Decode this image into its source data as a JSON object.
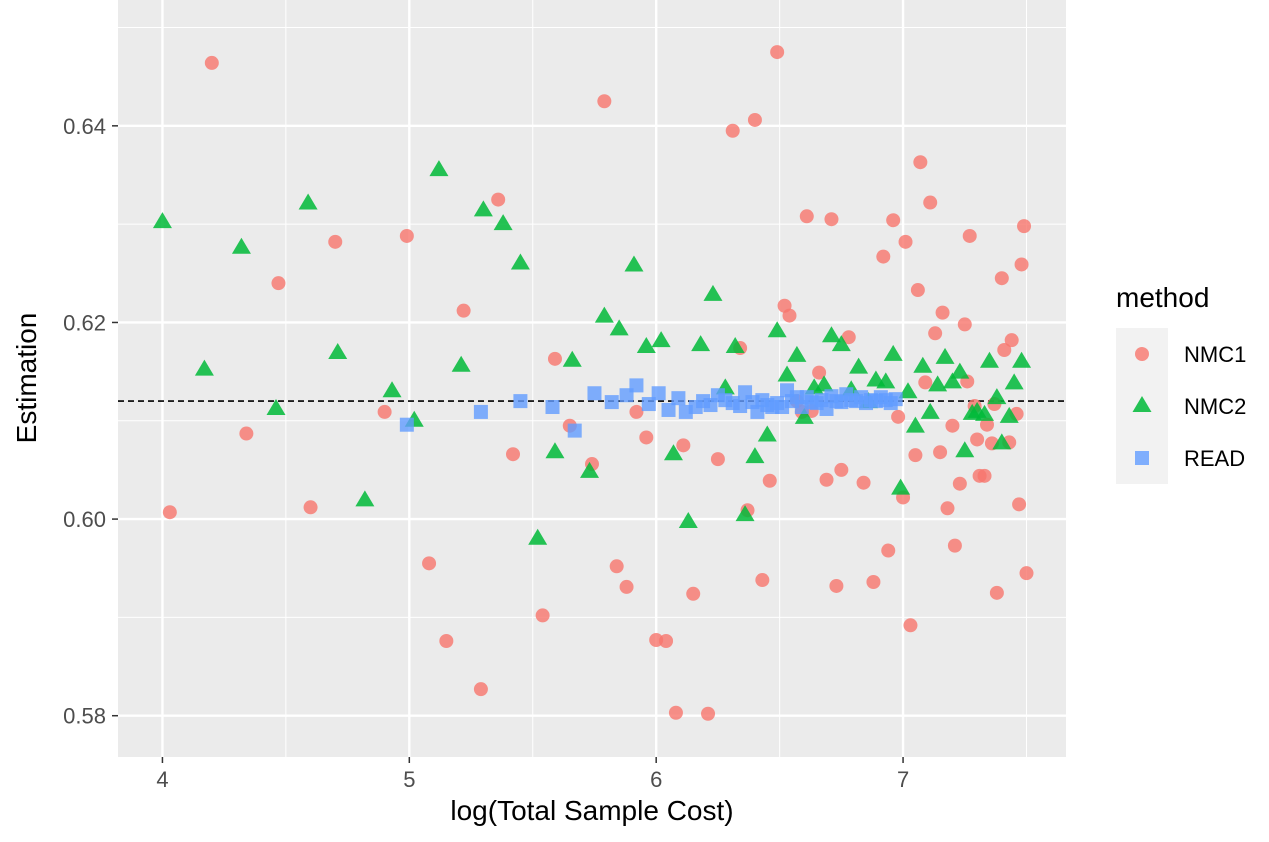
{
  "chart_data": {
    "type": "scatter",
    "xlabel": "log(Total Sample Cost)",
    "ylabel": "Estimation",
    "xlim": [
      3.82,
      7.66
    ],
    "ylim": [
      0.5758,
      0.6528
    ],
    "x_ticks": [
      4,
      5,
      6,
      7
    ],
    "x_tick_labels": [
      "4",
      "5",
      "6",
      "7"
    ],
    "y_ticks": [
      0.58,
      0.6,
      0.62,
      0.64
    ],
    "y_tick_labels": [
      "0.58",
      "0.60",
      "0.62",
      "0.64"
    ],
    "grid": true,
    "reference_line": {
      "y": 0.612,
      "style": "dashed",
      "color": "#000000"
    },
    "legend": {
      "title": "method",
      "placement": "right"
    },
    "series": [
      {
        "name": "NMC1",
        "shape": "circle",
        "color": "#F8766D",
        "points": [
          [
            4.03,
            0.6007
          ],
          [
            4.2,
            0.6464
          ],
          [
            4.34,
            0.6087
          ],
          [
            4.47,
            0.624
          ],
          [
            4.6,
            0.6012
          ],
          [
            4.7,
            0.6282
          ],
          [
            4.9,
            0.6109
          ],
          [
            4.99,
            0.6288
          ],
          [
            5.08,
            0.5955
          ],
          [
            5.15,
            0.5876
          ],
          [
            5.22,
            0.6212
          ],
          [
            5.29,
            0.5827
          ],
          [
            5.36,
            0.6325
          ],
          [
            5.42,
            0.6066
          ],
          [
            5.54,
            0.5902
          ],
          [
            5.59,
            0.6163
          ],
          [
            5.65,
            0.6095
          ],
          [
            5.74,
            0.6056
          ],
          [
            5.79,
            0.6425
          ],
          [
            5.84,
            0.5952
          ],
          [
            5.88,
            0.5931
          ],
          [
            5.92,
            0.6109
          ],
          [
            5.96,
            0.6083
          ],
          [
            6.0,
            0.5877
          ],
          [
            6.04,
            0.5876
          ],
          [
            6.08,
            0.5803
          ],
          [
            6.11,
            0.6075
          ],
          [
            6.15,
            0.5924
          ],
          [
            6.21,
            0.5802
          ],
          [
            6.25,
            0.6061
          ],
          [
            6.31,
            0.6395
          ],
          [
            6.34,
            0.6174
          ],
          [
            6.37,
            0.6009
          ],
          [
            6.4,
            0.6406
          ],
          [
            6.43,
            0.5938
          ],
          [
            6.46,
            0.6039
          ],
          [
            6.49,
            0.6475
          ],
          [
            6.52,
            0.6217
          ],
          [
            6.54,
            0.6207
          ],
          [
            6.57,
            0.612
          ],
          [
            6.59,
            0.6109
          ],
          [
            6.61,
            0.6308
          ],
          [
            6.63,
            0.611
          ],
          [
            6.66,
            0.6149
          ],
          [
            6.69,
            0.604
          ],
          [
            6.71,
            0.6305
          ],
          [
            6.73,
            0.5932
          ],
          [
            6.75,
            0.605
          ],
          [
            6.78,
            0.6185
          ],
          [
            6.84,
            0.6037
          ],
          [
            6.88,
            0.5936
          ],
          [
            6.92,
            0.6267
          ],
          [
            6.94,
            0.5968
          ],
          [
            6.96,
            0.6304
          ],
          [
            6.98,
            0.6104
          ],
          [
            7.0,
            0.6022
          ],
          [
            7.01,
            0.6282
          ],
          [
            7.03,
            0.5892
          ],
          [
            7.05,
            0.6065
          ],
          [
            7.06,
            0.6233
          ],
          [
            7.07,
            0.6363
          ],
          [
            7.09,
            0.6139
          ],
          [
            7.11,
            0.6322
          ],
          [
            7.13,
            0.6189
          ],
          [
            7.15,
            0.6068
          ],
          [
            7.16,
            0.621
          ],
          [
            7.18,
            0.6011
          ],
          [
            7.2,
            0.6095
          ],
          [
            7.21,
            0.5973
          ],
          [
            7.23,
            0.6036
          ],
          [
            7.25,
            0.6198
          ],
          [
            7.26,
            0.614
          ],
          [
            7.27,
            0.6288
          ],
          [
            7.29,
            0.6115
          ],
          [
            7.3,
            0.6081
          ],
          [
            7.31,
            0.6044
          ],
          [
            7.33,
            0.6044
          ],
          [
            7.34,
            0.6096
          ],
          [
            7.36,
            0.6077
          ],
          [
            7.37,
            0.6117
          ],
          [
            7.38,
            0.5925
          ],
          [
            7.4,
            0.6245
          ],
          [
            7.41,
            0.6172
          ],
          [
            7.43,
            0.6078
          ],
          [
            7.44,
            0.6182
          ],
          [
            7.46,
            0.6107
          ],
          [
            7.47,
            0.6015
          ],
          [
            7.48,
            0.6259
          ],
          [
            7.49,
            0.6298
          ],
          [
            7.5,
            0.5945
          ]
        ]
      },
      {
        "name": "NMC2",
        "shape": "triangle",
        "color": "#00BA38",
        "points": [
          [
            4.0,
            0.6302
          ],
          [
            4.17,
            0.6152
          ],
          [
            4.32,
            0.6276
          ],
          [
            4.46,
            0.6112
          ],
          [
            4.59,
            0.6321
          ],
          [
            4.71,
            0.6169
          ],
          [
            4.82,
            0.6019
          ],
          [
            4.93,
            0.613
          ],
          [
            5.02,
            0.61
          ],
          [
            5.12,
            0.6355
          ],
          [
            5.21,
            0.6156
          ],
          [
            5.3,
            0.6314
          ],
          [
            5.38,
            0.63
          ],
          [
            5.45,
            0.626
          ],
          [
            5.52,
            0.598
          ],
          [
            5.59,
            0.6068
          ],
          [
            5.66,
            0.6161
          ],
          [
            5.73,
            0.6048
          ],
          [
            5.79,
            0.6206
          ],
          [
            5.85,
            0.6193
          ],
          [
            5.91,
            0.6258
          ],
          [
            5.96,
            0.6175
          ],
          [
            6.02,
            0.6181
          ],
          [
            6.07,
            0.6066
          ],
          [
            6.13,
            0.5997
          ],
          [
            6.18,
            0.6177
          ],
          [
            6.23,
            0.6228
          ],
          [
            6.28,
            0.6133
          ],
          [
            6.32,
            0.6175
          ],
          [
            6.36,
            0.6004
          ],
          [
            6.4,
            0.6063
          ],
          [
            6.45,
            0.6085
          ],
          [
            6.49,
            0.6191
          ],
          [
            6.53,
            0.6146
          ],
          [
            6.57,
            0.6166
          ],
          [
            6.6,
            0.6103
          ],
          [
            6.64,
            0.6133
          ],
          [
            6.68,
            0.6136
          ],
          [
            6.71,
            0.6186
          ],
          [
            6.75,
            0.6177
          ],
          [
            6.79,
            0.6131
          ],
          [
            6.82,
            0.6154
          ],
          [
            6.86,
            0.6119
          ],
          [
            6.89,
            0.6141
          ],
          [
            6.93,
            0.6139
          ],
          [
            6.96,
            0.6167
          ],
          [
            6.99,
            0.6031
          ],
          [
            7.02,
            0.6129
          ],
          [
            7.05,
            0.6094
          ],
          [
            7.08,
            0.6155
          ],
          [
            7.11,
            0.6108
          ],
          [
            7.14,
            0.6136
          ],
          [
            7.17,
            0.6164
          ],
          [
            7.2,
            0.6139
          ],
          [
            7.23,
            0.6149
          ],
          [
            7.25,
            0.6069
          ],
          [
            7.28,
            0.6107
          ],
          [
            7.3,
            0.6109
          ],
          [
            7.33,
            0.6106
          ],
          [
            7.35,
            0.616
          ],
          [
            7.38,
            0.6123
          ],
          [
            7.4,
            0.6077
          ],
          [
            7.43,
            0.6104
          ],
          [
            7.45,
            0.6138
          ],
          [
            7.48,
            0.616
          ]
        ]
      },
      {
        "name": "READ",
        "shape": "square",
        "color": "#619CFF",
        "points": [
          [
            4.99,
            0.6096
          ],
          [
            5.29,
            0.6109
          ],
          [
            5.45,
            0.612
          ],
          [
            5.58,
            0.6114
          ],
          [
            5.67,
            0.609
          ],
          [
            5.75,
            0.6128
          ],
          [
            5.82,
            0.6119
          ],
          [
            5.88,
            0.6126
          ],
          [
            5.92,
            0.6136
          ],
          [
            5.97,
            0.6117
          ],
          [
            6.01,
            0.6128
          ],
          [
            6.05,
            0.6111
          ],
          [
            6.09,
            0.6123
          ],
          [
            6.12,
            0.6109
          ],
          [
            6.16,
            0.6114
          ],
          [
            6.19,
            0.612
          ],
          [
            6.22,
            0.6116
          ],
          [
            6.25,
            0.6126
          ],
          [
            6.28,
            0.6121
          ],
          [
            6.31,
            0.6118
          ],
          [
            6.34,
            0.6115
          ],
          [
            6.36,
            0.6129
          ],
          [
            6.39,
            0.6119
          ],
          [
            6.41,
            0.6109
          ],
          [
            6.43,
            0.6121
          ],
          [
            6.45,
            0.6116
          ],
          [
            6.47,
            0.6114
          ],
          [
            6.49,
            0.6118
          ],
          [
            6.51,
            0.6114
          ],
          [
            6.53,
            0.6131
          ],
          [
            6.55,
            0.612
          ],
          [
            6.57,
            0.6124
          ],
          [
            6.59,
            0.6114
          ],
          [
            6.61,
            0.6124
          ],
          [
            6.63,
            0.6119
          ],
          [
            6.65,
            0.6118
          ],
          [
            6.67,
            0.6121
          ],
          [
            6.69,
            0.6112
          ],
          [
            6.71,
            0.6125
          ],
          [
            6.73,
            0.612
          ],
          [
            6.75,
            0.6119
          ],
          [
            6.77,
            0.6127
          ],
          [
            6.79,
            0.6121
          ],
          [
            6.81,
            0.612
          ],
          [
            6.83,
            0.6124
          ],
          [
            6.85,
            0.6118
          ],
          [
            6.87,
            0.6121
          ],
          [
            6.89,
            0.612
          ],
          [
            6.91,
            0.6124
          ],
          [
            6.93,
            0.6121
          ],
          [
            6.95,
            0.6118
          ],
          [
            6.97,
            0.6122
          ]
        ]
      }
    ]
  }
}
